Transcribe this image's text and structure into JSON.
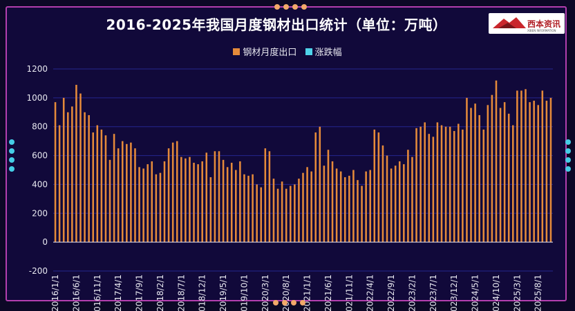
{
  "title": "2016-2025年我国月度钢材出口统计（单位：万吨）",
  "logo": {
    "text": "西本资讯",
    "subtext": "XIBEN INFORMATION"
  },
  "colors": {
    "bar": "#e58a3a",
    "series2": "#4fd3ea",
    "grid": "#25268f",
    "axis_text": "#e8e8f0",
    "frame": "#b33fae",
    "dot_top": "#f2a96a",
    "dot_side": "#45cde6"
  },
  "chart_data": {
    "type": "bar",
    "title": "2016-2025年我国月度钢材出口统计（单位：万吨）",
    "xlabel": "",
    "ylabel": "",
    "ylim": [
      -200,
      1200
    ],
    "yticks": [
      -200,
      0,
      200,
      400,
      600,
      800,
      1000,
      1200
    ],
    "grid": true,
    "legend_position": "top-center",
    "tick_labels": [
      "2016/1/1",
      "2016/6/1",
      "2016/11/1",
      "2017/4/1",
      "2017/9/1",
      "2018/2/1",
      "2018/7/1",
      "2018/12/1",
      "2019/5/1",
      "2019/10/1",
      "2020/3/1",
      "2020/8/1",
      "2021/1/1",
      "2021/6/1",
      "2021/11/1",
      "2022/4/1",
      "2022/9/1",
      "2023/2/1",
      "2023/7/1",
      "2023/12/1",
      "2024/5/1",
      "2024/10/1",
      "2025/3/1",
      "2025/8/1"
    ],
    "series": [
      {
        "name": "钢材月度出口",
        "values": [
          970,
          810,
          1000,
          900,
          940,
          1090,
          1030,
          900,
          880,
          760,
          810,
          780,
          740,
          570,
          750,
          650,
          700,
          680,
          690,
          650,
          520,
          510,
          540,
          560,
          470,
          480,
          560,
          650,
          690,
          700,
          590,
          580,
          590,
          550,
          540,
          560,
          620,
          450,
          630,
          630,
          570,
          520,
          550,
          500,
          560,
          470,
          460,
          470,
          400,
          380,
          650,
          630,
          440,
          370,
          420,
          370,
          390,
          400,
          440,
          480,
          520,
          490,
          760,
          800,
          530,
          640,
          560,
          510,
          490,
          450,
          460,
          500,
          430,
          390,
          490,
          500,
          780,
          760,
          670,
          600,
          510,
          530,
          560,
          540,
          640,
          590,
          790,
          800,
          830,
          750,
          730,
          830,
          810,
          800,
          800,
          770,
          820,
          780,
          1000,
          930,
          960,
          880,
          780,
          950,
          1020,
          1120,
          930,
          970,
          890,
          810,
          1050,
          1050,
          1060,
          970,
          980,
          950,
          1050,
          980,
          1000
        ]
      },
      {
        "name": "涨跌幅",
        "values": []
      }
    ]
  }
}
